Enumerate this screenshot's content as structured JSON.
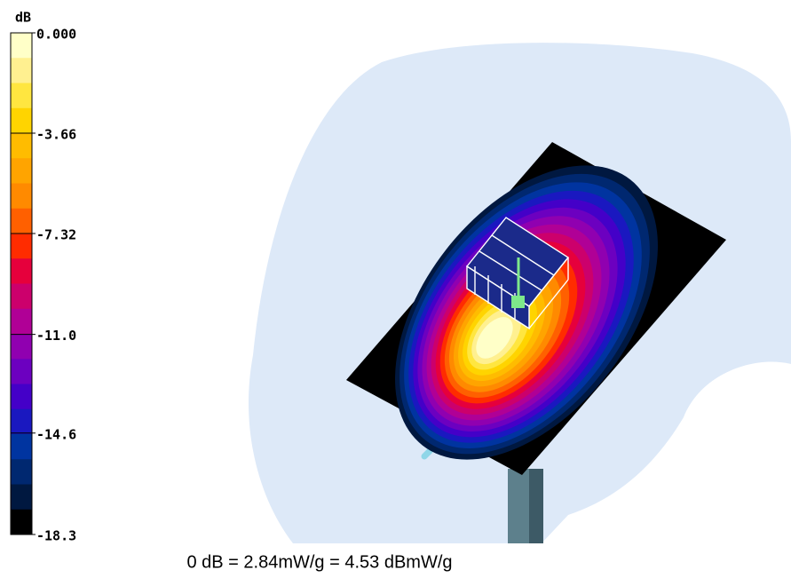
{
  "chart_data": {
    "type": "colormap",
    "colorbar_label": "dB",
    "clim": [
      -18.3,
      0
    ],
    "cticks": [
      {
        "value": 0,
        "label": "0.000"
      },
      -3.66,
      -7.32,
      {
        "value": -11,
        "label": "-11.0"
      },
      -14.6,
      -18.3
    ],
    "colors": [
      "#ffffc8",
      "#fff090",
      "#ffe640",
      "#ffd400",
      "#ffbc00",
      "#ffa400",
      "#ff8a00",
      "#ff6000",
      "#ff2c00",
      "#e6003c",
      "#cc006c",
      "#b00096",
      "#9000b0",
      "#6c00c0",
      "#4400c8",
      "#1a18c0",
      "#0034a0",
      "#002870",
      "#001840",
      "#000000"
    ],
    "caption": "0 dB = 2.84mW/g = 4.53 dBmW/g"
  }
}
